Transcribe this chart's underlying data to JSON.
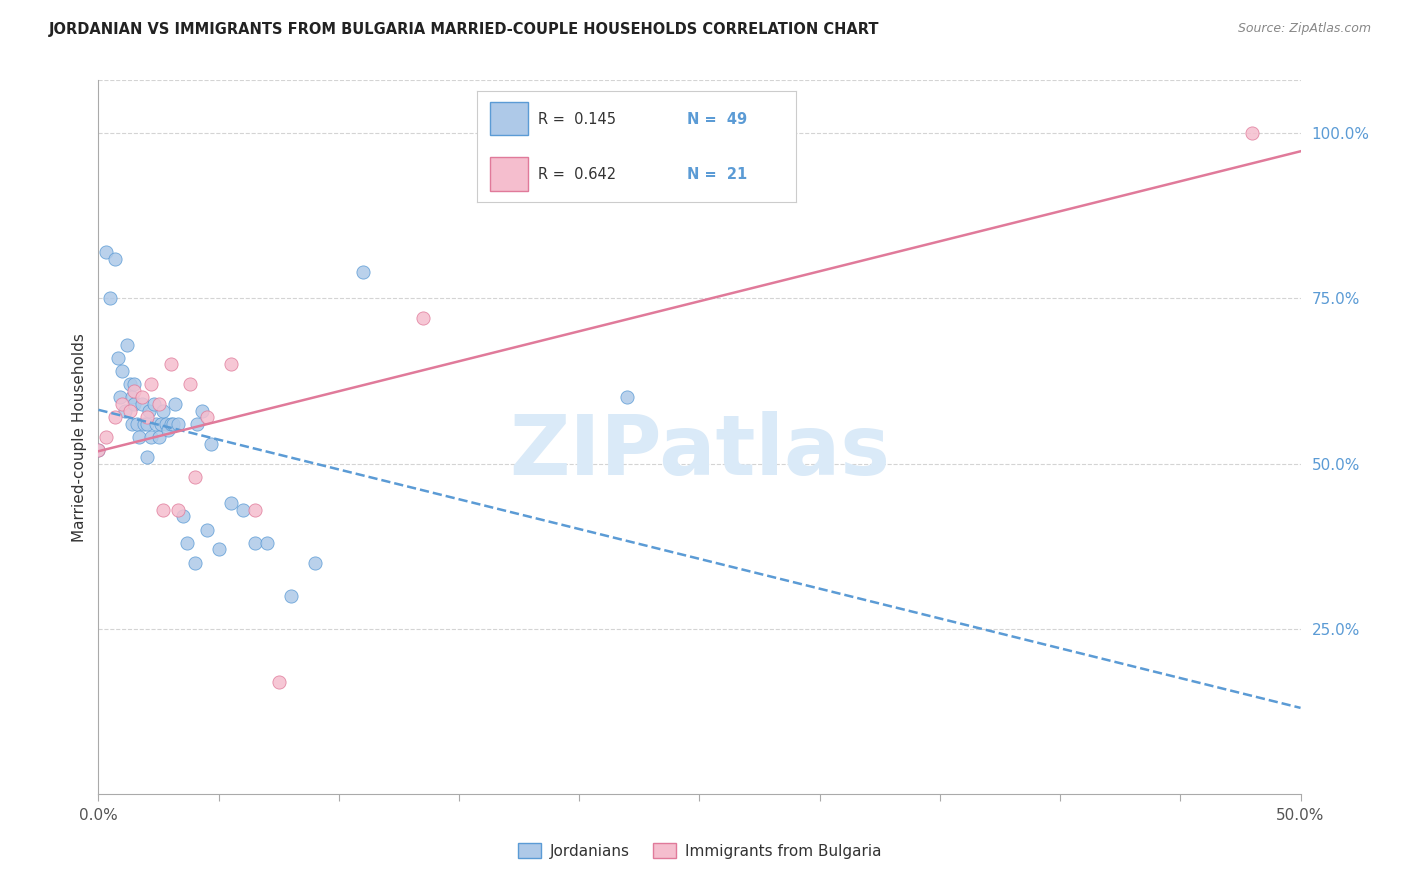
{
  "title": "JORDANIAN VS IMMIGRANTS FROM BULGARIA MARRIED-COUPLE HOUSEHOLDS CORRELATION CHART",
  "source": "Source: ZipAtlas.com",
  "ylabel": "Married-couple Households",
  "right_ytick_labels": [
    "100.0%",
    "75.0%",
    "50.0%",
    "25.0%"
  ],
  "right_ytick_vals": [
    1.0,
    0.75,
    0.5,
    0.25
  ],
  "xlim": [
    0.0,
    0.5
  ],
  "ylim": [
    0.0,
    1.08
  ],
  "legend_r1": "0.145",
  "legend_n1": "49",
  "legend_r2": "0.642",
  "legend_n2": "21",
  "color_jordanian_fill": "#aec9e8",
  "color_jordanian_edge": "#5b9bd5",
  "color_bulgaria_fill": "#f5bece",
  "color_bulgaria_edge": "#e07a9a",
  "line_color_jordanian": "#5b9bd5",
  "line_color_bulgaria": "#e07a9a",
  "tick_label_color": "#5b9bd5",
  "grid_color": "#d4d4d4",
  "title_color": "#222222",
  "source_color": "#888888",
  "ylabel_color": "#333333",
  "watermark_text": "ZIPatlas",
  "watermark_color": "#daeaf8",
  "legend_label1": "Jordanians",
  "legend_label2": "Immigrants from Bulgaria",
  "jordanian_x": [
    0.0,
    0.003,
    0.005,
    0.007,
    0.008,
    0.009,
    0.01,
    0.011,
    0.012,
    0.013,
    0.014,
    0.014,
    0.015,
    0.015,
    0.016,
    0.017,
    0.018,
    0.019,
    0.02,
    0.02,
    0.021,
    0.022,
    0.023,
    0.024,
    0.025,
    0.026,
    0.027,
    0.028,
    0.029,
    0.03,
    0.031,
    0.032,
    0.033,
    0.035,
    0.037,
    0.04,
    0.041,
    0.043,
    0.045,
    0.047,
    0.05,
    0.055,
    0.06,
    0.065,
    0.07,
    0.08,
    0.09,
    0.11,
    0.22
  ],
  "jordanian_y": [
    0.52,
    0.82,
    0.75,
    0.81,
    0.66,
    0.6,
    0.64,
    0.58,
    0.68,
    0.62,
    0.6,
    0.56,
    0.62,
    0.59,
    0.56,
    0.54,
    0.59,
    0.56,
    0.51,
    0.56,
    0.58,
    0.54,
    0.59,
    0.56,
    0.54,
    0.56,
    0.58,
    0.56,
    0.55,
    0.56,
    0.56,
    0.59,
    0.56,
    0.42,
    0.38,
    0.35,
    0.56,
    0.58,
    0.4,
    0.53,
    0.37,
    0.44,
    0.43,
    0.38,
    0.38,
    0.3,
    0.35,
    0.79,
    0.6
  ],
  "bulgaria_x": [
    0.0,
    0.003,
    0.007,
    0.01,
    0.013,
    0.015,
    0.018,
    0.02,
    0.022,
    0.025,
    0.027,
    0.03,
    0.033,
    0.038,
    0.04,
    0.045,
    0.055,
    0.065,
    0.075,
    0.135,
    0.48
  ],
  "bulgaria_y": [
    0.52,
    0.54,
    0.57,
    0.59,
    0.58,
    0.61,
    0.6,
    0.57,
    0.62,
    0.59,
    0.43,
    0.65,
    0.43,
    0.62,
    0.48,
    0.57,
    0.65,
    0.43,
    0.17,
    0.72,
    1.0
  ],
  "dot_size": 90
}
